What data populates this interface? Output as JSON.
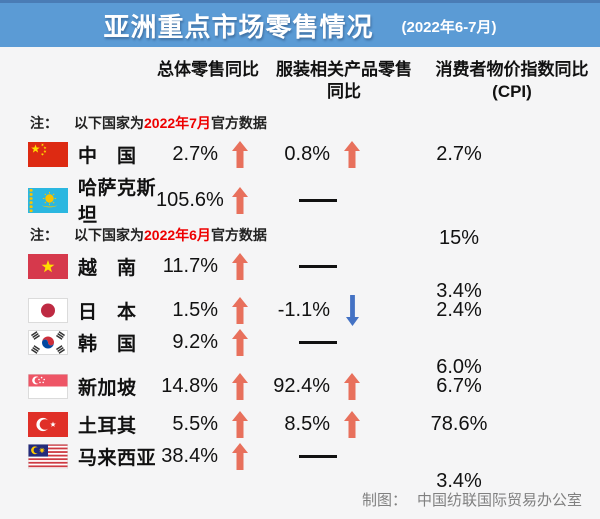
{
  "header": {
    "title": "亚洲重点市场零售情况",
    "subtitle": "(2022年6-7月)"
  },
  "columns": {
    "overall": "总体零售同比",
    "apparel": "服装相关产品零售\n同比",
    "cpi": "消费者物价指数同比\n(CPI)"
  },
  "sections": [
    {
      "note": {
        "prefix": "注：",
        "pre": "以下国家为",
        "highlight": "2022年7月",
        "suffix": "官方数据"
      },
      "rows": [
        {
          "flag": "china",
          "country": "中　国",
          "overall": {
            "value": "2.7%",
            "trend": "up"
          },
          "apparel": {
            "value": "0.8%",
            "trend": "up"
          },
          "cpi": "2.7%"
        },
        {
          "flag": "kazakhstan",
          "country": "哈萨克斯坦",
          "overall": {
            "value": "105.6%",
            "trend": "up"
          },
          "apparel": {
            "value": "——",
            "trend": "none"
          },
          "cpi": "15%"
        }
      ]
    },
    {
      "note": {
        "prefix": "注：",
        "pre": "以下国家为",
        "highlight": "2022年6月",
        "suffix": "官方数据"
      },
      "rows": [
        {
          "flag": "vietnam",
          "country": "越　南",
          "overall": {
            "value": "11.7%",
            "trend": "up"
          },
          "apparel": {
            "value": "——",
            "trend": "none"
          },
          "cpi": "3.4%"
        },
        {
          "flag": "japan",
          "country": "日　本",
          "overall": {
            "value": "1.5%",
            "trend": "up"
          },
          "apparel": {
            "value": "-1.1%",
            "trend": "down"
          },
          "cpi": "2.4%"
        },
        {
          "flag": "south-korea",
          "country": "韩　国",
          "overall": {
            "value": "9.2%",
            "trend": "up"
          },
          "apparel": {
            "value": "——",
            "trend": "none"
          },
          "cpi": "6.0%"
        },
        {
          "flag": "singapore",
          "country": "新加坡",
          "overall": {
            "value": "14.8%",
            "trend": "up"
          },
          "apparel": {
            "value": "92.4%",
            "trend": "up"
          },
          "cpi": "6.7%"
        },
        {
          "flag": "turkey",
          "country": "土耳其",
          "overall": {
            "value": "5.5%",
            "trend": "up"
          },
          "apparel": {
            "value": "8.5%",
            "trend": "up"
          },
          "cpi": "78.6%"
        },
        {
          "flag": "malaysia",
          "country": "马来西亚",
          "overall": {
            "value": "38.4%",
            "trend": "up"
          },
          "apparel": {
            "value": "——",
            "trend": "none"
          },
          "cpi": "3.4%"
        }
      ]
    }
  ],
  "footer": {
    "label": "制图：",
    "text": "中国纺联国际贸易办公室"
  },
  "colors": {
    "banner_blue": "#5B9BD5",
    "up_arrow": "#E8705C",
    "down_arrow": "#4472C4",
    "note_red": "#EE0000"
  },
  "chart_data": {
    "type": "table",
    "title": "亚洲重点市场零售情况 (2022年6-7月)",
    "columns": [
      "国家",
      "总体零售同比",
      "服装相关产品零售同比",
      "消费者物价指数同比(CPI)"
    ],
    "unit": "%",
    "rows": [
      {
        "country": "中国",
        "data_period": "2022年7月",
        "overall_retail_yoy": 2.7,
        "apparel_retail_yoy": 0.8,
        "cpi_yoy": 2.7
      },
      {
        "country": "哈萨克斯坦",
        "data_period": "2022年7月",
        "overall_retail_yoy": 105.6,
        "apparel_retail_yoy": null,
        "cpi_yoy": 15
      },
      {
        "country": "越南",
        "data_period": "2022年6月",
        "overall_retail_yoy": 11.7,
        "apparel_retail_yoy": null,
        "cpi_yoy": 3.4
      },
      {
        "country": "日本",
        "data_period": "2022年6月",
        "overall_retail_yoy": 1.5,
        "apparel_retail_yoy": -1.1,
        "cpi_yoy": 2.4
      },
      {
        "country": "韩国",
        "data_period": "2022年6月",
        "overall_retail_yoy": 9.2,
        "apparel_retail_yoy": null,
        "cpi_yoy": 6.0
      },
      {
        "country": "新加坡",
        "data_period": "2022年6月",
        "overall_retail_yoy": 14.8,
        "apparel_retail_yoy": 92.4,
        "cpi_yoy": 6.7
      },
      {
        "country": "土耳其",
        "data_period": "2022年6月",
        "overall_retail_yoy": 5.5,
        "apparel_retail_yoy": 8.5,
        "cpi_yoy": 78.6
      },
      {
        "country": "马来西亚",
        "data_period": "2022年6月",
        "overall_retail_yoy": 38.4,
        "apparel_retail_yoy": null,
        "cpi_yoy": 3.4
      }
    ],
    "footnote": "制图：中国纺联国际贸易办公室"
  }
}
